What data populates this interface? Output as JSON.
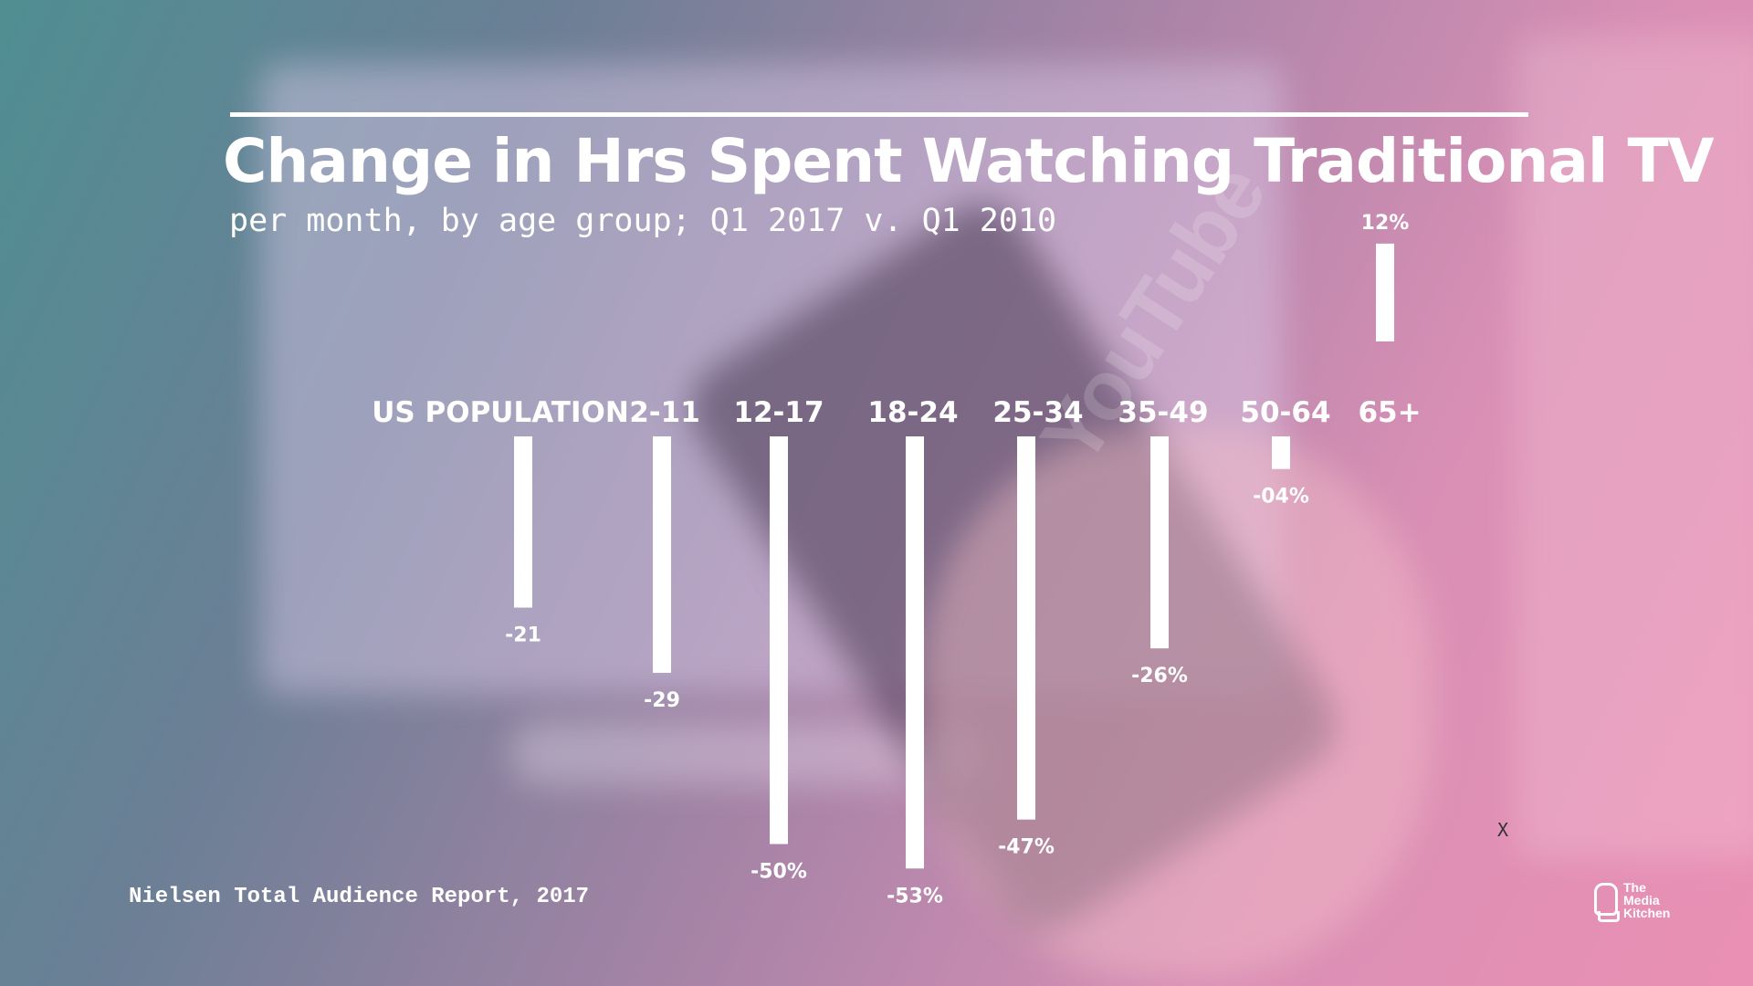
{
  "header": {
    "title": "Change in Hrs Spent Watching Traditional TV",
    "subtitle": "per month, by age group; Q1 2017 v. Q1 2010"
  },
  "footer": {
    "source": "Nielsen Total Audience Report, 2017",
    "close_label": "X",
    "logo_lines": [
      "The",
      "Media",
      "Kitchen"
    ]
  },
  "background": {
    "watermark_text": "YouTube"
  },
  "colors": {
    "bar": "#ffffff",
    "text": "#ffffff"
  },
  "chart_data": {
    "type": "bar",
    "title": "Change in Hrs Spent Watching Traditional TV",
    "subtitle": "per month, by age group; Q1 2017 v. Q1 2010",
    "categories": [
      "US POPULATION",
      "2-11",
      "12-17",
      "18-24",
      "25-34",
      "35-49",
      "50-64",
      "65+"
    ],
    "values": [
      -21,
      -29,
      -50,
      -53,
      -47,
      -26,
      -4,
      12
    ],
    "value_labels": [
      "-21",
      "-29",
      "-50%",
      "-53%",
      "-47%",
      "-26%",
      "-04%",
      "12%"
    ],
    "xlabel": "",
    "ylabel": "",
    "ylim": [
      -53,
      12
    ],
    "grid": false,
    "legend": "none"
  }
}
